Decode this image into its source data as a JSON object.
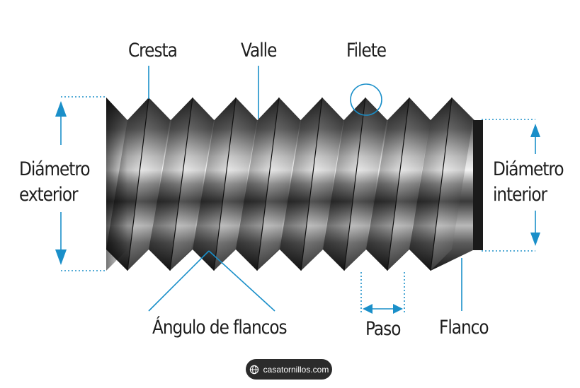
{
  "labels": {
    "cresta": "Cresta",
    "valle": "Valle",
    "filete": "Filete",
    "diametro_exterior_1": "Diámetro",
    "diametro_exterior_2": "exterior",
    "diametro_interior_1": "Diámetro",
    "diametro_interior_2": "interior",
    "angulo_flancos": "Ángulo de flancos",
    "paso": "Paso",
    "flanco": "Flanco"
  },
  "badge": {
    "text": "casatornillos.com",
    "icon": "globe-icon"
  },
  "colors": {
    "accent": "#1a8fc9",
    "label": "#1e1e1e",
    "badge_bg": "#2b2b2b"
  }
}
